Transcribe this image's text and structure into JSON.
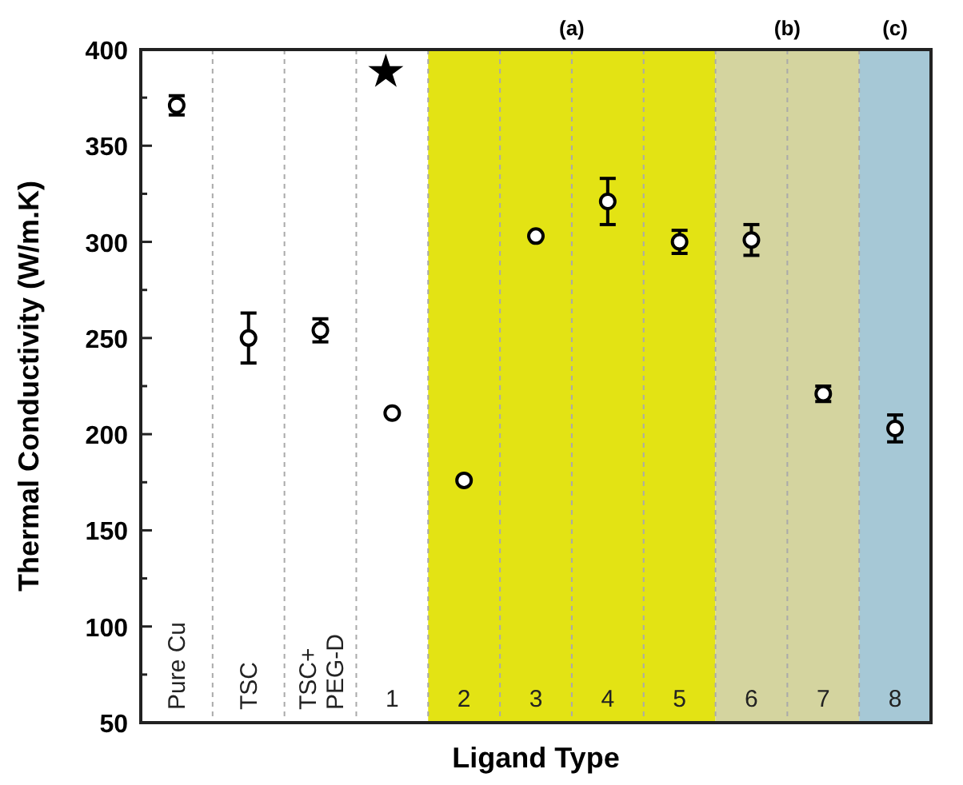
{
  "chart_data": {
    "type": "scatter",
    "xlabel": "Ligand Type",
    "ylabel": "Thermal Conductivity (W/m.K)",
    "categories": [
      "Pure Cu",
      "TSC",
      "TSC+\nPEG-D",
      "1",
      "2",
      "3",
      "4",
      "5",
      "6",
      "7",
      "8"
    ],
    "values": [
      371,
      250,
      254,
      211,
      176,
      303,
      321,
      300,
      301,
      221,
      203
    ],
    "errors": [
      5,
      13,
      6,
      null,
      null,
      null,
      12,
      6,
      8,
      4,
      7
    ],
    "color": "#000000",
    "marker": "circle",
    "grid": "x",
    "ylim": [
      50,
      400
    ],
    "yticks": [
      50,
      {
        "value": 75,
        "label": null
      },
      100,
      {
        "value": 125,
        "label": null
      },
      150,
      {
        "value": 175,
        "label": null
      },
      200,
      {
        "value": 225,
        "label": null
      },
      250,
      {
        "value": 275,
        "label": null
      },
      300,
      {
        "value": 325,
        "label": null
      },
      350,
      {
        "value": 375,
        "label": null
      },
      400
    ],
    "bands": [
      {
        "axis": "x",
        "from": "2",
        "to": "5",
        "label": "(a)",
        "color": "#e3e314"
      },
      {
        "axis": "x",
        "from": "6",
        "to": "7",
        "label": "(b)",
        "color": "#d4d49f"
      },
      {
        "axis": "x",
        "from": "8",
        "to": "8",
        "label": "(c)",
        "color": "#a6c8d6"
      }
    ]
  }
}
